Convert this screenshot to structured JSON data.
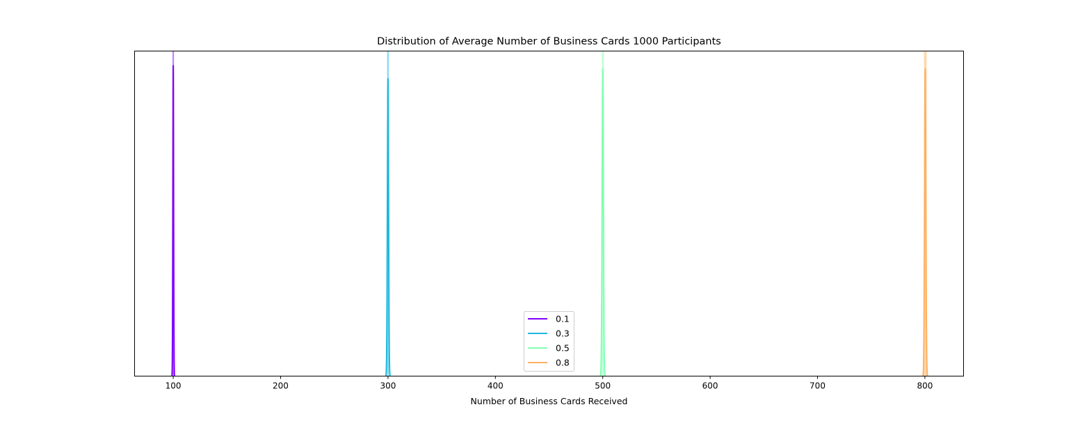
{
  "chart_data": {
    "type": "line",
    "title": "Distribution of Average Number of Business Cards 1000 Participants",
    "xlabel": "Number of Business Cards Received",
    "ylabel": "",
    "xlim": [
      64,
      836
    ],
    "ylim": [
      0,
      1
    ],
    "xticks": [
      100,
      200,
      300,
      400,
      500,
      600,
      700,
      800
    ],
    "xtick_labels": [
      "100",
      "200",
      "300",
      "400",
      "500",
      "600",
      "700",
      "800"
    ],
    "yticks_visible": false,
    "grid": false,
    "legend_position": "lower-center",
    "series": [
      {
        "name": "0.1",
        "color": "#8000ff",
        "line_peak": {
          "center": 100,
          "spread": 0.35,
          "height": 0.955
        },
        "hist_fill": {
          "x_min": 99.3,
          "x_max": 100.7,
          "height": 1.2
        }
      },
      {
        "name": "0.3",
        "color": "#1cb8dd",
        "line_peak": {
          "center": 300,
          "spread": 0.55,
          "height": 0.915
        },
        "hist_fill": {
          "x_min": 299.2,
          "x_max": 300.8,
          "height": 1.2
        }
      },
      {
        "name": "0.5",
        "color": "#82ffb2",
        "line_peak": {
          "center": 500,
          "spread": 0.6,
          "height": 0.945
        },
        "hist_fill": {
          "x_min": 499.2,
          "x_max": 501.0,
          "height": 1.2
        }
      },
      {
        "name": "0.8",
        "color": "#ffb060",
        "line_peak": {
          "center": 800.3,
          "spread": 0.6,
          "height": 0.945
        },
        "hist_fill": {
          "x_min": 799.2,
          "x_max": 801.6,
          "height": 1.2
        }
      }
    ]
  }
}
